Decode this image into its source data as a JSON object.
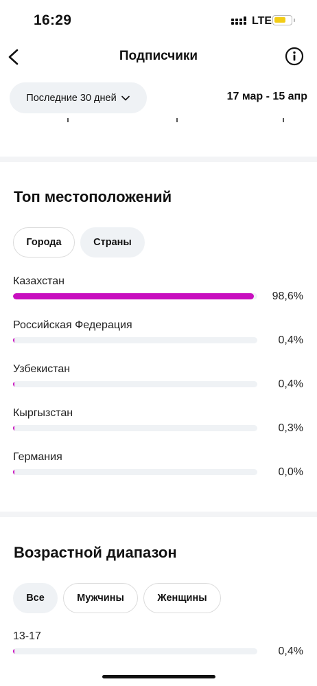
{
  "status_bar": {
    "time": "16:29",
    "network": "LTE",
    "battery_color": "#f2cc16"
  },
  "nav": {
    "title": "Подписчики",
    "back_icon": "chevron-left-icon",
    "info_icon": "info-icon"
  },
  "filter": {
    "range_label": "Последние 30 дней",
    "date_range": "17 мар - 15 апр"
  },
  "locations": {
    "title": "Топ местоположений",
    "tabs": [
      {
        "label": "Города",
        "active": false
      },
      {
        "label": "Страны",
        "active": true
      }
    ],
    "bar_color": "#c80fbf",
    "items": [
      {
        "label": "Казахстан",
        "value": "98,6%",
        "percent": 98.6
      },
      {
        "label": "Российская Федерация",
        "value": "0,4%",
        "percent": 0.4
      },
      {
        "label": "Узбекистан",
        "value": "0,4%",
        "percent": 0.4
      },
      {
        "label": "Кыргызстан",
        "value": "0,3%",
        "percent": 0.3
      },
      {
        "label": "Германия",
        "value": "0,0%",
        "percent": 0.0
      }
    ]
  },
  "age": {
    "title": "Возрастной диапазон",
    "tabs": [
      {
        "label": "Все",
        "active": true
      },
      {
        "label": "Мужчины",
        "active": false
      },
      {
        "label": "Женщины",
        "active": false
      }
    ],
    "items": [
      {
        "label": "13-17",
        "value": "0,4%",
        "percent": 0.4
      }
    ]
  }
}
